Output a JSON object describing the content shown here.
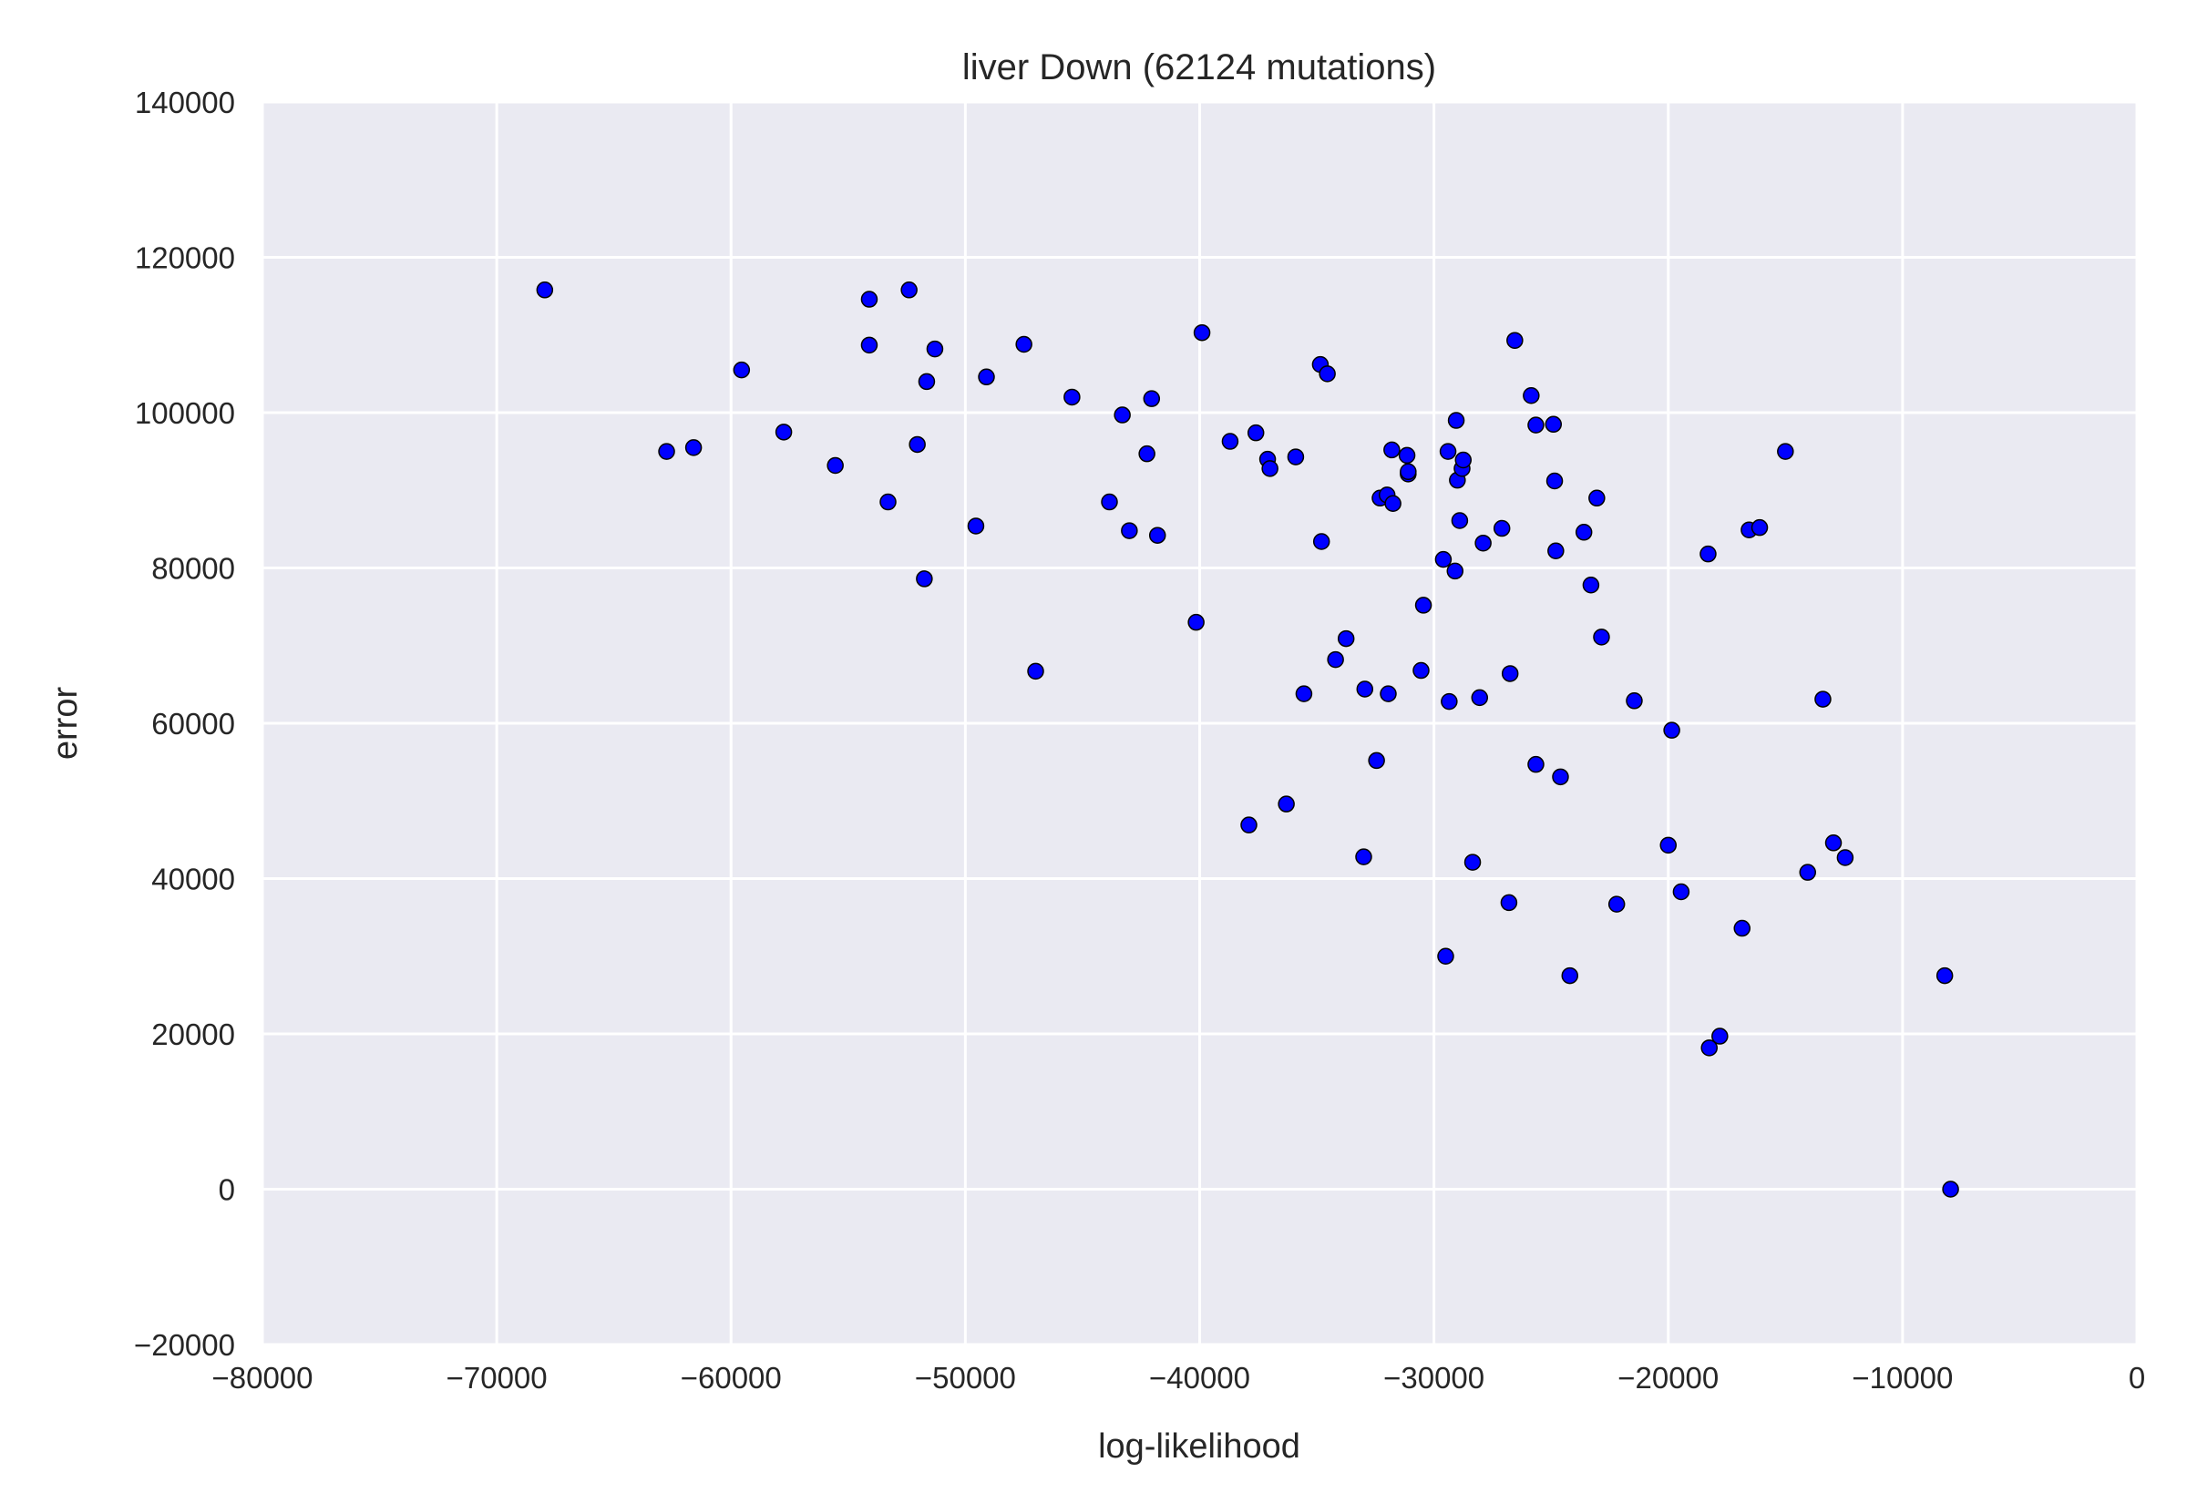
{
  "chart_data": {
    "type": "scatter",
    "title": "liver Down (62124 mutations)",
    "xlabel": "log-likelihood",
    "ylabel": "error",
    "xlim": [
      -80000,
      0
    ],
    "ylim": [
      -20000,
      140000
    ],
    "xticks": [
      -80000,
      -70000,
      -60000,
      -50000,
      -40000,
      -30000,
      -20000,
      -10000,
      0
    ],
    "yticks": [
      -20000,
      0,
      20000,
      40000,
      60000,
      80000,
      100000,
      120000,
      140000
    ],
    "xtick_labels": [
      "−80000",
      "−70000",
      "−60000",
      "−50000",
      "−40000",
      "−30000",
      "−20000",
      "−10000",
      "0"
    ],
    "ytick_labels": [
      "−20000",
      "0",
      "20000",
      "40000",
      "60000",
      "80000",
      "100000",
      "120000",
      "140000"
    ],
    "grid": true,
    "point_color": "#0000ff",
    "background_color": "#eaeaf2",
    "series": [
      {
        "points": [
          [
            -67950,
            115800
          ],
          [
            -62750,
            95000
          ],
          [
            -61600,
            95500
          ],
          [
            -59550,
            105500
          ],
          [
            -57750,
            97500
          ],
          [
            -55550,
            93200
          ],
          [
            -54100,
            114600
          ],
          [
            -54100,
            108700
          ],
          [
            -53300,
            88500
          ],
          [
            -52400,
            115800
          ],
          [
            -52050,
            95900
          ],
          [
            -51750,
            78600
          ],
          [
            -51650,
            104000
          ],
          [
            -51300,
            108200
          ],
          [
            -49550,
            85400
          ],
          [
            -49100,
            104600
          ],
          [
            -47500,
            108800
          ],
          [
            -47000,
            66700
          ],
          [
            -45450,
            102000
          ],
          [
            -43850,
            88500
          ],
          [
            -43300,
            99700
          ],
          [
            -43000,
            84800
          ],
          [
            -42250,
            94700
          ],
          [
            -42050,
            101800
          ],
          [
            -41800,
            84200
          ],
          [
            -40150,
            73000
          ],
          [
            -39900,
            110300
          ],
          [
            -38700,
            96300
          ],
          [
            -37900,
            46900
          ],
          [
            -37600,
            97400
          ],
          [
            -37100,
            94000
          ],
          [
            -37000,
            92800
          ],
          [
            -36300,
            49600
          ],
          [
            -35900,
            94300
          ],
          [
            -35550,
            63800
          ],
          [
            -34850,
            106200
          ],
          [
            -34800,
            83400
          ],
          [
            -34550,
            105000
          ],
          [
            -34200,
            68200
          ],
          [
            -33750,
            70900
          ],
          [
            -33000,
            42800
          ],
          [
            -32950,
            64400
          ],
          [
            -32450,
            55200
          ],
          [
            -32300,
            89000
          ],
          [
            -32000,
            89400
          ],
          [
            -31950,
            63800
          ],
          [
            -31800,
            95200
          ],
          [
            -31750,
            88300
          ],
          [
            -31150,
            94500
          ],
          [
            -31100,
            92100
          ],
          [
            -31100,
            92400
          ],
          [
            -30550,
            66800
          ],
          [
            -30450,
            75200
          ],
          [
            -29600,
            81100
          ],
          [
            -29500,
            30000
          ],
          [
            -29400,
            95000
          ],
          [
            -29350,
            62800
          ],
          [
            -29100,
            79600
          ],
          [
            -29050,
            99000
          ],
          [
            -29000,
            91300
          ],
          [
            -28900,
            86100
          ],
          [
            -28800,
            92800
          ],
          [
            -28750,
            93900
          ],
          [
            -28350,
            42100
          ],
          [
            -28050,
            63300
          ],
          [
            -27900,
            83200
          ],
          [
            -27100,
            85100
          ],
          [
            -26800,
            36900
          ],
          [
            -26750,
            66400
          ],
          [
            -26550,
            109300
          ],
          [
            -25850,
            102200
          ],
          [
            -25650,
            54700
          ],
          [
            -25650,
            98400
          ],
          [
            -24900,
            98500
          ],
          [
            -24850,
            91200
          ],
          [
            -24800,
            82200
          ],
          [
            -24600,
            53100
          ],
          [
            -24200,
            27500
          ],
          [
            -23600,
            84600
          ],
          [
            -23300,
            77800
          ],
          [
            -23050,
            89000
          ],
          [
            -22850,
            71100
          ],
          [
            -22200,
            36700
          ],
          [
            -21450,
            62900
          ],
          [
            -20000,
            44300
          ],
          [
            -19850,
            59100
          ],
          [
            -19450,
            38300
          ],
          [
            -18300,
            81800
          ],
          [
            -18250,
            18200
          ],
          [
            -17800,
            19700
          ],
          [
            -16850,
            33600
          ],
          [
            -16550,
            84900
          ],
          [
            -16100,
            85200
          ],
          [
            -15000,
            95000
          ],
          [
            -14050,
            40800
          ],
          [
            -13400,
            63100
          ],
          [
            -12950,
            44600
          ],
          [
            -12450,
            42700
          ],
          [
            -8200,
            27500
          ],
          [
            -7950,
            0
          ]
        ]
      }
    ]
  }
}
